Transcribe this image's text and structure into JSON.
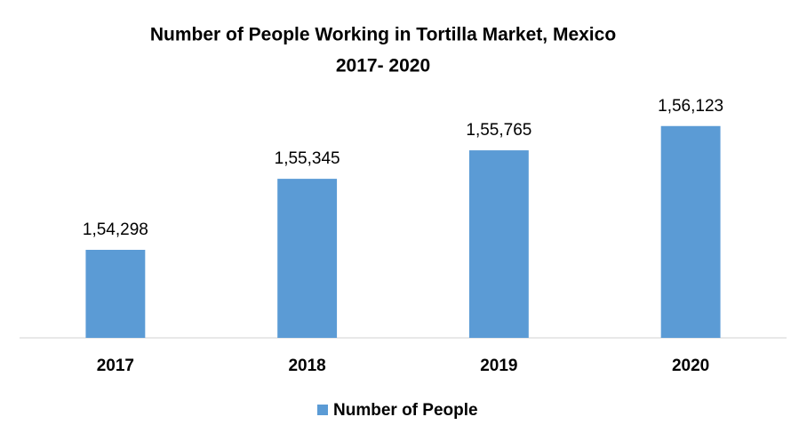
{
  "chart_data": {
    "type": "bar",
    "title": "Number of People Working in Tortilla Market, Mexico",
    "subtitle": "2017- 2020",
    "categories": [
      "2017",
      "2018",
      "2019",
      "2020"
    ],
    "series": [
      {
        "name": "Number of People",
        "color": "#5b9bd5",
        "values": [
          154298,
          155345,
          155765,
          156123
        ],
        "value_labels": [
          "1,54,298",
          "1,55,345",
          "1,55,765",
          "1,56,123"
        ]
      }
    ],
    "ylim": [
      153000,
      156500
    ]
  }
}
